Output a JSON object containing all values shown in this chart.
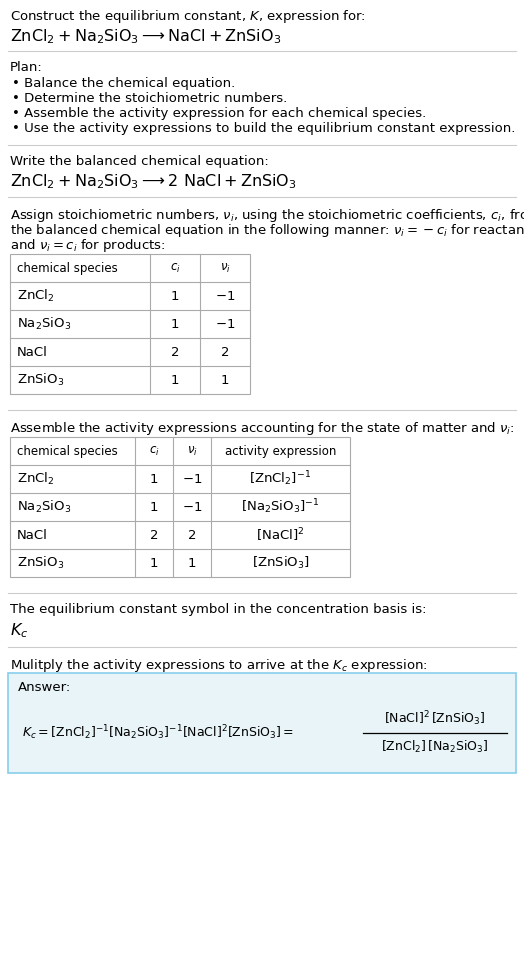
{
  "bg_color": "#ffffff",
  "text_color": "#000000",
  "title_line1": "Construct the equilibrium constant, $K$, expression for:",
  "title_line2": "$\\mathrm{ZnCl_2 + Na_2SiO_3 \\longrightarrow NaCl + ZnSiO_3}$",
  "plan_header": "Plan:",
  "plan_items": [
    "• Balance the chemical equation.",
    "• Determine the stoichiometric numbers.",
    "• Assemble the activity expression for each chemical species.",
    "• Use the activity expressions to build the equilibrium constant expression."
  ],
  "balanced_header": "Write the balanced chemical equation:",
  "balanced_eq": "$\\mathrm{ZnCl_2 + Na_2SiO_3 \\longrightarrow 2\\ NaCl + ZnSiO_3}$",
  "stoich_header1": "Assign stoichiometric numbers, $\\nu_i$, using the stoichiometric coefficients, $c_i$, from",
  "stoich_header2": "the balanced chemical equation in the following manner: $\\nu_i = -c_i$ for reactants",
  "stoich_header3": "and $\\nu_i = c_i$ for products:",
  "table1_headers": [
    "chemical species",
    "$c_i$",
    "$\\nu_i$"
  ],
  "table1_rows": [
    [
      "$\\mathrm{ZnCl_2}$",
      "1",
      "$-1$"
    ],
    [
      "$\\mathrm{Na_2SiO_3}$",
      "1",
      "$-1$"
    ],
    [
      "NaCl",
      "2",
      "2"
    ],
    [
      "$\\mathrm{ZnSiO_3}$",
      "1",
      "1"
    ]
  ],
  "activity_header": "Assemble the activity expressions accounting for the state of matter and $\\nu_i$:",
  "table2_headers": [
    "chemical species",
    "$c_i$",
    "$\\nu_i$",
    "activity expression"
  ],
  "table2_rows": [
    [
      "$\\mathrm{ZnCl_2}$",
      "1",
      "$-1$",
      "$[\\mathrm{ZnCl_2}]^{-1}$"
    ],
    [
      "$\\mathrm{Na_2SiO_3}$",
      "1",
      "$-1$",
      "$[\\mathrm{Na_2SiO_3}]^{-1}$"
    ],
    [
      "NaCl",
      "2",
      "2",
      "$[\\mathrm{NaCl}]^2$"
    ],
    [
      "$\\mathrm{ZnSiO_3}$",
      "1",
      "1",
      "$[\\mathrm{ZnSiO_3}]$"
    ]
  ],
  "kc_header": "The equilibrium constant symbol in the concentration basis is:",
  "kc_symbol": "$K_c$",
  "multiply_header": "Mulitply the activity expressions to arrive at the $K_c$ expression:",
  "answer_label": "Answer:",
  "answer_box_color": "#e8f4f8",
  "answer_border_color": "#87ceeb",
  "table_border_color": "#aaaaaa",
  "separator_color": "#cccccc",
  "font_size": 9.5
}
